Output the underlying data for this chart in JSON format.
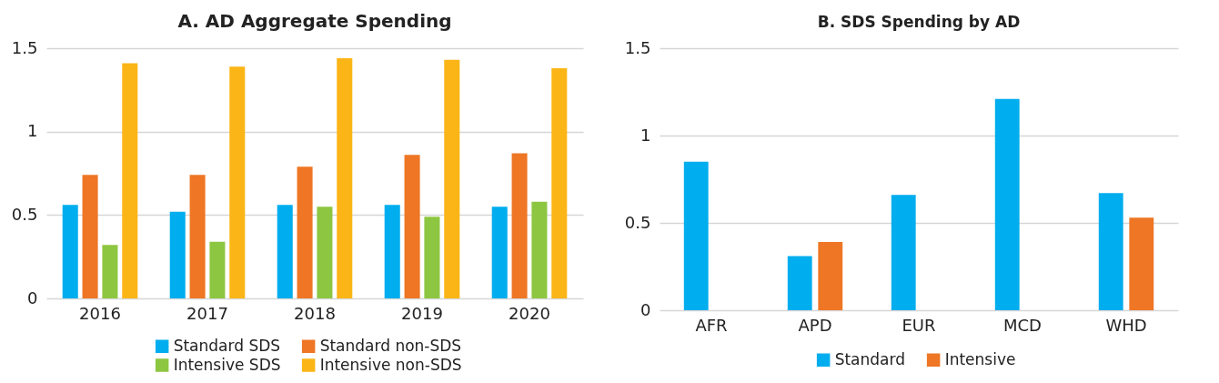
{
  "chart_data": [
    {
      "type": "bar",
      "title": "A. AD Aggregate Spending",
      "categories": [
        "2016",
        "2017",
        "2018",
        "2019",
        "2020"
      ],
      "series": [
        {
          "name": "Standard SDS",
          "color": "#00adee",
          "values": [
            0.56,
            0.52,
            0.56,
            0.56,
            0.55
          ]
        },
        {
          "name": "Standard non-SDS",
          "color": "#ee7624",
          "values": [
            0.74,
            0.74,
            0.79,
            0.86,
            0.87
          ]
        },
        {
          "name": "Intensive SDS",
          "color": "#8dc641",
          "values": [
            0.32,
            0.34,
            0.55,
            0.49,
            0.58
          ]
        },
        {
          "name": "Intensive non-SDS",
          "color": "#fbb516",
          "values": [
            1.41,
            1.39,
            1.44,
            1.43,
            1.38
          ]
        }
      ],
      "ylim": [
        0,
        1.5
      ],
      "yticks": [
        0,
        0.5,
        1,
        1.5
      ],
      "grid": "y",
      "legend": "bottom"
    },
    {
      "type": "bar",
      "title": "B. SDS Spending by AD",
      "categories": [
        "AFR",
        "APD",
        "EUR",
        "MCD",
        "WHD"
      ],
      "series": [
        {
          "name": "Standard",
          "color": "#00adee",
          "values": [
            0.85,
            0.31,
            0.66,
            1.21,
            0.67
          ]
        },
        {
          "name": "Intensive",
          "color": "#ee7624",
          "values": [
            null,
            0.39,
            null,
            null,
            0.53
          ]
        }
      ],
      "ylim": [
        0,
        1.5
      ],
      "yticks": [
        0,
        0.5,
        1,
        1.5
      ],
      "grid": "y",
      "legend": "bottom"
    }
  ]
}
